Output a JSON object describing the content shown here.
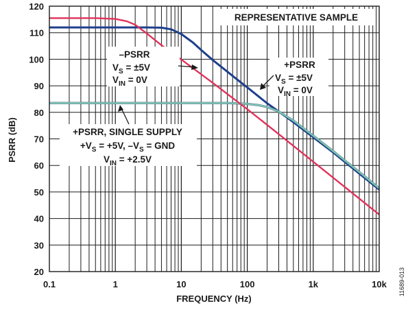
{
  "chart_data": {
    "type": "line",
    "title": "",
    "xlabel": "FREQUENCY (Hz)",
    "ylabel": "PSRR (dB)",
    "xscale": "log",
    "xlim": [
      0.1,
      10000
    ],
    "ylim": [
      20,
      120
    ],
    "grid": true,
    "x_ticks": [
      "0.1",
      "1",
      "10",
      "100",
      "1k",
      "10k"
    ],
    "y_ticks": [
      "20",
      "30",
      "40",
      "50",
      "60",
      "70",
      "80",
      "90",
      "100",
      "110",
      "120"
    ],
    "series": [
      {
        "name": "+PSRR VS = ±5V VIN = 0V",
        "color": "#1f3f8c",
        "x": [
          0.1,
          1,
          2,
          3,
          5,
          7,
          10,
          15,
          20,
          30,
          50,
          70,
          100,
          150,
          200,
          300,
          500,
          1000,
          2000,
          5000,
          10000
        ],
        "y": [
          112,
          112,
          112,
          112,
          111.9,
          111.3,
          109.5,
          106.3,
          103.5,
          99.7,
          95.3,
          92.4,
          89.4,
          85.9,
          83.4,
          80.3,
          76.3,
          70.6,
          64.9,
          56.9,
          50.9
        ]
      },
      {
        "name": "+PSRR, SINGLE SUPPLY +VS = +5V, -VS = GND VIN = +2.5V",
        "color": "#7fc7b6",
        "x": [
          0.1,
          1,
          10,
          50,
          100,
          150,
          200,
          300,
          500,
          1000,
          2000,
          5000,
          10000
        ],
        "y": [
          83.5,
          83.5,
          83.5,
          83.5,
          83.2,
          82.7,
          82,
          80.3,
          76.9,
          71.2,
          65.4,
          57.5,
          51.4
        ]
      },
      {
        "name": "-PSRR VS = ±5V VIN = 0V",
        "color": "#e0325a",
        "x": [
          0.1,
          0.5,
          1,
          1.5,
          2,
          3,
          5,
          10,
          30,
          100,
          300,
          1000,
          3000,
          10000
        ],
        "y": [
          115.5,
          115.5,
          115.2,
          114.3,
          113,
          109.7,
          105.3,
          99.9,
          91.1,
          81.2,
          71.8,
          61.4,
          51.9,
          41.5
        ]
      }
    ],
    "annotations": [
      {
        "id": "sample",
        "lines": [
          "REPRESENTATIVE SAMPLE"
        ]
      },
      {
        "id": "neg",
        "lines": [
          "–PSRR",
          "VS = ±5V",
          "VIN = 0V"
        ]
      },
      {
        "id": "pos",
        "lines": [
          "+PSRR",
          "VS = ±5V",
          "VIN = 0V"
        ]
      },
      {
        "id": "single",
        "lines": [
          "+PSRR, SINGLE SUPPLY",
          "+VS = +5V, –VS = GND",
          "VIN = +2.5V"
        ]
      }
    ],
    "figure_id": "11689-013"
  }
}
